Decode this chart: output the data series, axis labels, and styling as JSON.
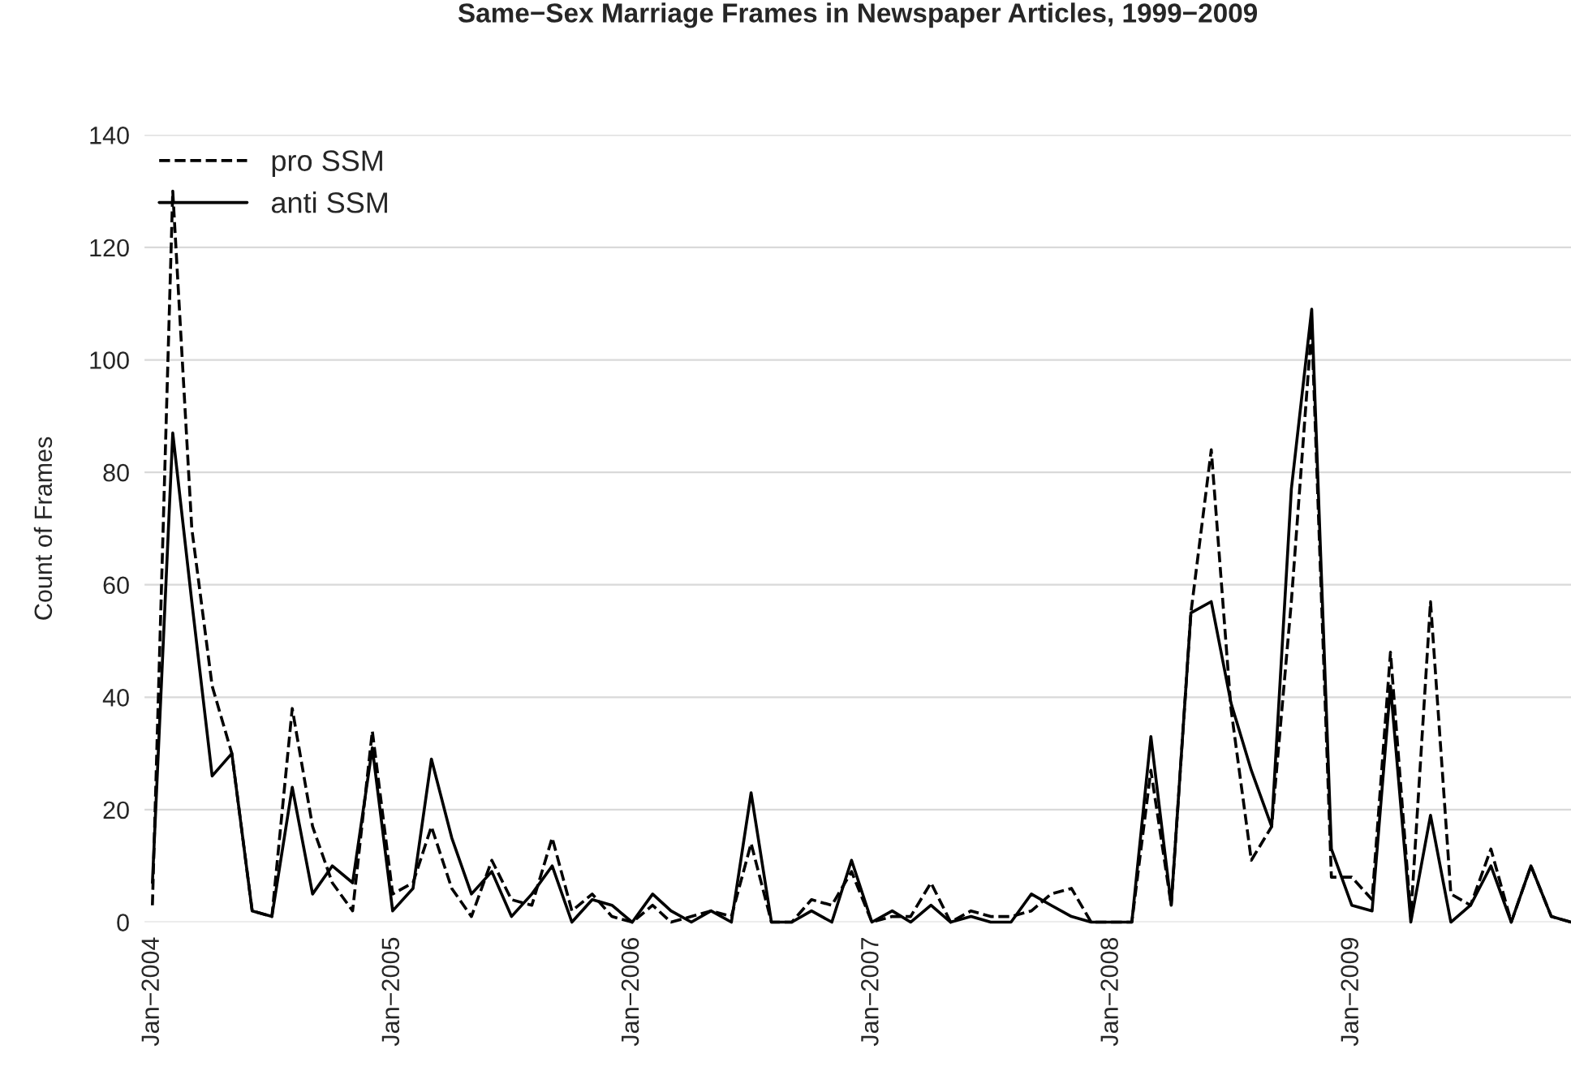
{
  "chart_data": {
    "type": "line",
    "title": "Same−Sex Marriage Frames in Newspaper Articles, 1999−2009",
    "ylabel": "Count of Frames",
    "x": [
      "2004-01",
      "2004-02",
      "2004-03",
      "2004-04",
      "2004-05",
      "2004-06",
      "2004-07",
      "2004-08",
      "2004-09",
      "2004-10",
      "2004-11",
      "2004-12",
      "2005-01",
      "2005-02",
      "2005-03",
      "2005-04",
      "2005-05",
      "2005-06",
      "2005-07",
      "2005-08",
      "2005-09",
      "2005-10",
      "2005-11",
      "2005-12",
      "2006-01",
      "2006-02",
      "2006-03",
      "2006-04",
      "2006-05",
      "2006-06",
      "2006-07",
      "2006-08",
      "2006-09",
      "2006-10",
      "2006-11",
      "2006-12",
      "2007-01",
      "2007-02",
      "2007-03",
      "2007-04",
      "2007-05",
      "2007-06",
      "2007-07",
      "2007-08",
      "2007-09",
      "2007-10",
      "2007-11",
      "2007-12",
      "2008-01",
      "2008-02",
      "2008-03",
      "2008-04",
      "2008-05",
      "2008-06",
      "2008-07",
      "2008-08",
      "2008-09",
      "2008-10",
      "2008-11",
      "2008-12",
      "2009-01",
      "2009-02",
      "2009-03",
      "2009-04",
      "2009-05",
      "2009-06",
      "2009-07",
      "2009-08",
      "2009-09",
      "2009-10",
      "2009-11",
      "2009-12"
    ],
    "series": [
      {
        "name": "pro SSM",
        "color": "#000000",
        "line_style": "dashed",
        "values": [
          3,
          130,
          70,
          42,
          30,
          2,
          1,
          38,
          17,
          7,
          2,
          34,
          5,
          7,
          17,
          6,
          1,
          11,
          4,
          3,
          15,
          2,
          5,
          1,
          0,
          3,
          0,
          1,
          2,
          1,
          14,
          0,
          0,
          4,
          3,
          9,
          0,
          1,
          1,
          7,
          0,
          2,
          1,
          1,
          2,
          5,
          6,
          0,
          0,
          0,
          27,
          3,
          55,
          84,
          38,
          11,
          17,
          57,
          106,
          8,
          8,
          4,
          48,
          1,
          57,
          5,
          3,
          13,
          0,
          10,
          1,
          0
        ]
      },
      {
        "name": "anti SSM",
        "color": "#000000",
        "line_style": "solid",
        "values": [
          7,
          87,
          57,
          26,
          30,
          2,
          1,
          24,
          5,
          10,
          7,
          31,
          2,
          6,
          29,
          15,
          5,
          9,
          1,
          5,
          10,
          0,
          4,
          3,
          0,
          5,
          2,
          0,
          2,
          0,
          23,
          0,
          0,
          2,
          0,
          11,
          0,
          2,
          0,
          3,
          0,
          1,
          0,
          0,
          5,
          3,
          1,
          0,
          0,
          0,
          33,
          3,
          55,
          57,
          39,
          27,
          17,
          77,
          109,
          13,
          3,
          2,
          42,
          0,
          19,
          0,
          3,
          10,
          0,
          10,
          1,
          0
        ]
      }
    ],
    "xlim": [
      "2003-12-20",
      "2009-12-01"
    ],
    "xticks": [
      {
        "value": "2004-01",
        "label": "Jan−2004"
      },
      {
        "value": "2005-01",
        "label": "Jan−2005"
      },
      {
        "value": "2006-01",
        "label": "Jan−2006"
      },
      {
        "value": "2007-01",
        "label": "Jan−2007"
      },
      {
        "value": "2008-01",
        "label": "Jan−2008"
      },
      {
        "value": "2009-01",
        "label": "Jan−2009"
      }
    ],
    "ylim": [
      0,
      140
    ],
    "yticks": [
      0,
      20,
      40,
      60,
      80,
      100,
      120,
      140
    ],
    "grid": "y",
    "legend": "top left"
  }
}
